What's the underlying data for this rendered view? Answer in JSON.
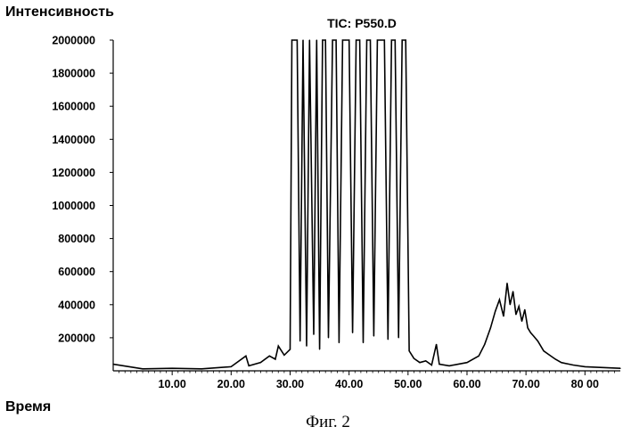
{
  "chart_data": {
    "type": "line",
    "title": "TIC: P550.D",
    "ylabel": "Интенсивность",
    "xlabel": "Время",
    "caption": "Фиг. 2",
    "xlim": [
      0,
      86
    ],
    "ylim": [
      0,
      2000000
    ],
    "y_ticks": [
      200000,
      400000,
      600000,
      800000,
      1000000,
      1200000,
      1400000,
      1600000,
      1800000,
      2000000
    ],
    "y_tick_labels": [
      "200000",
      "400000",
      "600000",
      "800000",
      "1000000",
      "1200000",
      "1400000",
      "1600000",
      "1800000",
      "2000000"
    ],
    "x_ticks": [
      10,
      20,
      30,
      40,
      50,
      60,
      70,
      80
    ],
    "x_tick_labels": [
      "10.00",
      "20.00",
      "30.00",
      "40.00",
      "50.00",
      "60.00",
      "70.00",
      "80 00"
    ],
    "grid": false,
    "legend": "none",
    "line_color": "#000000",
    "series": [
      {
        "x": [
          0.0,
          5.0,
          10.0,
          15.0,
          20.0,
          22.5,
          23.0,
          25.0,
          26.5,
          27.5,
          28.0,
          29.0,
          30.0,
          30.3,
          30.8,
          31.2,
          31.7,
          32.2,
          32.8,
          33.3,
          34.0,
          34.5,
          35.0,
          35.5,
          36.0,
          36.5,
          37.2,
          37.8,
          38.3,
          38.9,
          39.4,
          40.0,
          40.6,
          41.2,
          41.8,
          42.4,
          43.0,
          43.6,
          44.2,
          44.8,
          45.4,
          46.0,
          46.6,
          47.2,
          47.8,
          48.4,
          49.0,
          49.6,
          50.2,
          51.0,
          52.0,
          53.0,
          54.0,
          54.8,
          55.3,
          57.0,
          60.0,
          62.0,
          63.0,
          64.0,
          64.8,
          65.5,
          66.2,
          66.8,
          67.3,
          67.8,
          68.3,
          68.8,
          69.3,
          69.8,
          70.3,
          70.8,
          71.3,
          72.0,
          73.0,
          74.0,
          75.0,
          76.0,
          78.0,
          80.0,
          83.0,
          86.0
        ],
        "y": [
          40000,
          12000,
          15000,
          12000,
          25000,
          90000,
          30000,
          50000,
          90000,
          70000,
          150000,
          95000,
          130000,
          2000000,
          2000000,
          2000000,
          180000,
          2000000,
          150000,
          2000000,
          220000,
          2000000,
          130000,
          2000000,
          2000000,
          200000,
          2000000,
          2000000,
          170000,
          2000000,
          2000000,
          2000000,
          230000,
          2000000,
          2000000,
          170000,
          2000000,
          2000000,
          210000,
          2000000,
          2000000,
          2000000,
          190000,
          2000000,
          2000000,
          200000,
          2000000,
          2000000,
          120000,
          75000,
          50000,
          60000,
          35000,
          160000,
          40000,
          30000,
          50000,
          90000,
          160000,
          260000,
          360000,
          430000,
          330000,
          530000,
          400000,
          480000,
          340000,
          390000,
          300000,
          370000,
          260000,
          230000,
          210000,
          180000,
          120000,
          95000,
          70000,
          50000,
          35000,
          25000,
          20000,
          15000
        ]
      }
    ]
  }
}
